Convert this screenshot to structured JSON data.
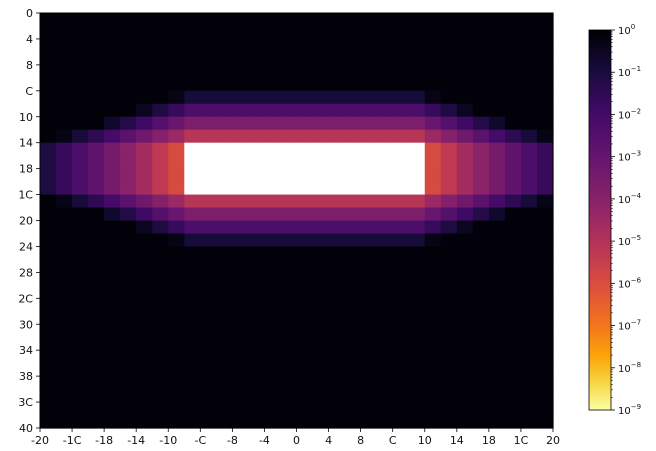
{
  "chart_data": {
    "type": "heatmap",
    "title": "",
    "xlabel": "",
    "ylabel": "",
    "x_tick_labels": [
      "-20",
      "-1C",
      "-18",
      "-14",
      "-10",
      "-C",
      "-8",
      "-4",
      "0",
      "4",
      "8",
      "C",
      "10",
      "14",
      "18",
      "1C",
      "20"
    ],
    "y_tick_labels": [
      "0",
      "4",
      "8",
      "C",
      "10",
      "14",
      "18",
      "1C",
      "20",
      "24",
      "28",
      "2C",
      "30",
      "34",
      "38",
      "3C",
      "40"
    ],
    "grid": {
      "cols": 32,
      "rows": 32
    },
    "color_scale": "log",
    "colormap": "inferno_r",
    "colorbar": {
      "base": "10",
      "exponents": [
        "0",
        "−1",
        "−2",
        "−3",
        "−4",
        "−5",
        "−6",
        "−7",
        "−8",
        "−9"
      ],
      "range": [
        1e-09,
        1
      ]
    },
    "saturated_color": "#ffffff",
    "background_value": 0.8,
    "bright_region": {
      "col_range": [
        9,
        23
      ],
      "row_range": [
        10,
        13
      ],
      "description": "values below colour range (rendered white)"
    },
    "profile": {
      "peak_min_exponent": -6.5,
      "horizontal_decay_per_col": 0.6,
      "vertical_decay_per_row": 1.4
    }
  }
}
